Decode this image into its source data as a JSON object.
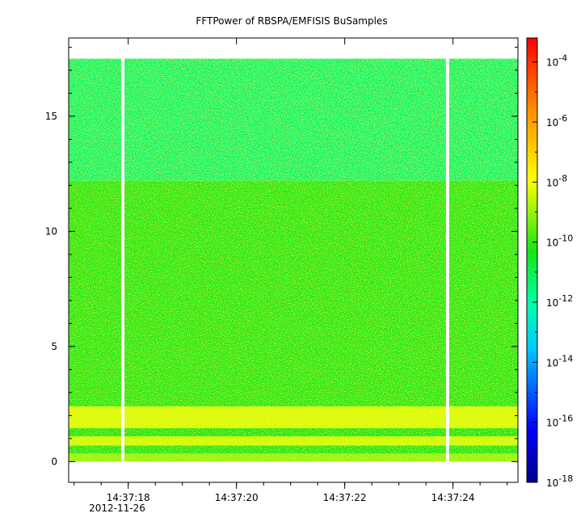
{
  "chart_data": {
    "type": "heatmap",
    "title": "FFTPower of RBSPA/EMFISIS  BuSamples",
    "x_ticks": [
      {
        "value": 18,
        "label": "14:37:18"
      },
      {
        "value": 20,
        "label": "14:37:20"
      },
      {
        "value": 22,
        "label": "14:37:22"
      },
      {
        "value": 24,
        "label": "14:37:24"
      }
    ],
    "x_sublabel": "2012-11-26",
    "x_range": [
      16.9,
      25.2
    ],
    "data_x_range": [
      16.9,
      25.2
    ],
    "y_ticks": [
      0,
      5,
      10,
      15
    ],
    "y_range": [
      -0.9,
      18.4
    ],
    "data_y_range": [
      0,
      17.5
    ],
    "gaps_x": [
      17.9,
      23.9
    ],
    "colorbar": {
      "scale": "log",
      "range_exponent": [
        -18,
        -3.2
      ],
      "ticks": [
        {
          "exponent": -18,
          "label": "10",
          "sup": "-18"
        },
        {
          "exponent": -16,
          "label": "10",
          "sup": "-16"
        },
        {
          "exponent": -14,
          "label": "10",
          "sup": "-14"
        },
        {
          "exponent": -12,
          "label": "10",
          "sup": "-12"
        },
        {
          "exponent": -10,
          "label": "10",
          "sup": "-10"
        },
        {
          "exponent": -8,
          "label": "10",
          "sup": "-8"
        },
        {
          "exponent": -6,
          "label": "10",
          "sup": "-6"
        },
        {
          "exponent": -4,
          "label": "10",
          "sup": "-4"
        }
      ]
    },
    "bands": [
      {
        "y_from": 0.0,
        "y_to": 0.35,
        "log_power": -9.0
      },
      {
        "y_from": 0.35,
        "y_to": 0.7,
        "log_power": -10.2
      },
      {
        "y_from": 0.7,
        "y_to": 1.1,
        "log_power": -8.4
      },
      {
        "y_from": 1.1,
        "y_to": 1.45,
        "log_power": -10.3
      },
      {
        "y_from": 1.45,
        "y_to": 2.4,
        "log_power": -8.3
      },
      {
        "y_from": 2.4,
        "y_to": 12.2,
        "log_power": -10.1
      },
      {
        "y_from": 12.2,
        "y_to": 17.5,
        "log_power": -11.3
      }
    ]
  }
}
